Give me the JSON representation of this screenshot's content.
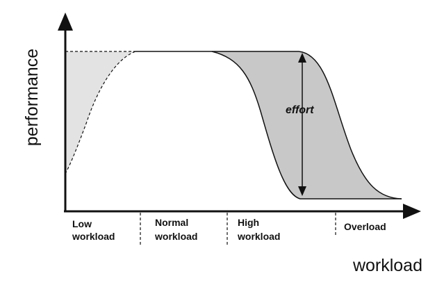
{
  "axes": {
    "y_label": "performance",
    "x_label": "workload"
  },
  "zones": [
    {
      "line1": "Low",
      "line2": "workload"
    },
    {
      "line1": "Normal",
      "line2": "workload"
    },
    {
      "line1": "High",
      "line2": "workload"
    },
    {
      "line1": "Overload",
      "line2": ""
    }
  ],
  "annotation": {
    "effort_label": "effort"
  },
  "colors": {
    "low_fill": "#e3e3e3",
    "high_fill": "#c8c8c8",
    "ink": "#111111"
  }
}
